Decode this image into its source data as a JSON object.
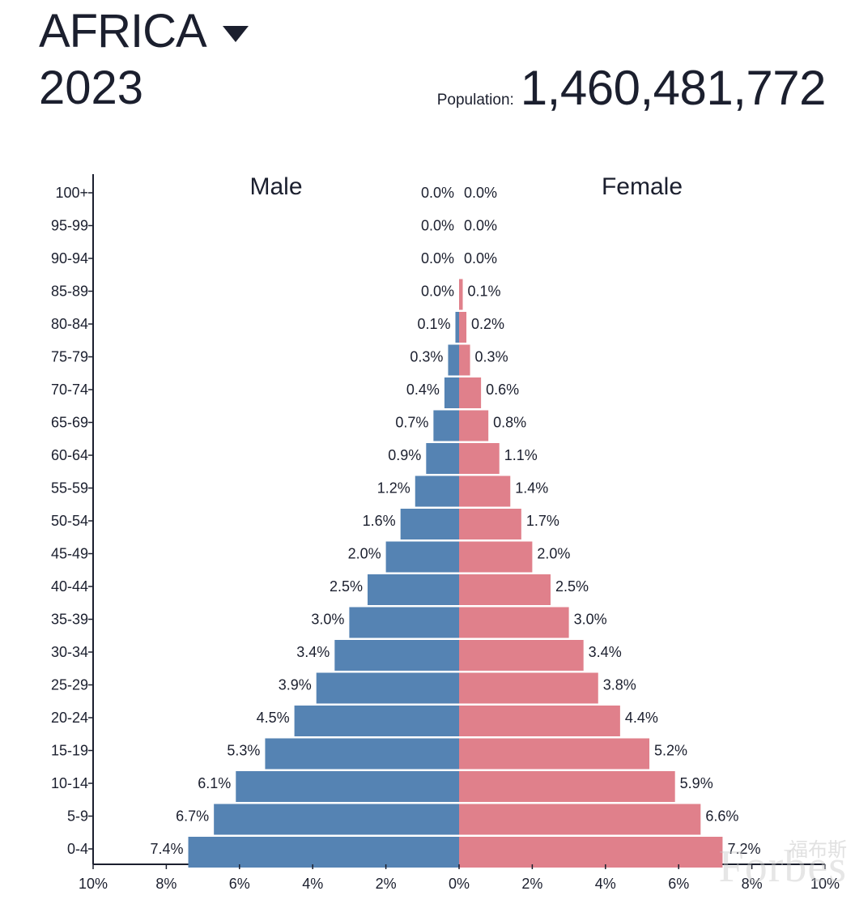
{
  "header": {
    "region": "AFRICA",
    "year": "2023",
    "population_label": "Population:",
    "population_value": "1,460,481,772",
    "dropdown_icon": "caret-down-icon"
  },
  "watermark": {
    "text": "Forbes",
    "cn": "福布斯"
  },
  "chart_data": {
    "type": "bar",
    "orientation": "horizontal-diverging",
    "categories": [
      "100+",
      "95-99",
      "90-94",
      "85-89",
      "80-84",
      "75-79",
      "70-74",
      "65-69",
      "60-64",
      "55-59",
      "50-54",
      "45-49",
      "40-44",
      "35-39",
      "30-34",
      "25-29",
      "20-24",
      "15-19",
      "10-14",
      "5-9",
      "0-4"
    ],
    "series": [
      {
        "name": "Male",
        "color": "#5583b3",
        "values": [
          0.0,
          0.0,
          0.0,
          0.0,
          0.1,
          0.3,
          0.4,
          0.7,
          0.9,
          1.2,
          1.6,
          2.0,
          2.5,
          3.0,
          3.4,
          3.9,
          4.5,
          5.3,
          6.1,
          6.7,
          7.4
        ],
        "labels": [
          "0.0%",
          "0.0%",
          "0.0%",
          "0.0%",
          "0.1%",
          "0.3%",
          "0.4%",
          "0.7%",
          "0.9%",
          "1.2%",
          "1.6%",
          "2.0%",
          "2.5%",
          "3.0%",
          "3.4%",
          "3.9%",
          "4.5%",
          "5.3%",
          "6.1%",
          "6.7%",
          "7.4%"
        ]
      },
      {
        "name": "Female",
        "color": "#e0808b",
        "values": [
          0.0,
          0.0,
          0.0,
          0.1,
          0.2,
          0.3,
          0.6,
          0.8,
          1.1,
          1.4,
          1.7,
          2.0,
          2.5,
          3.0,
          3.4,
          3.8,
          4.4,
          5.2,
          5.9,
          6.6,
          7.2
        ],
        "labels": [
          "0.0%",
          "0.0%",
          "0.0%",
          "0.1%",
          "0.2%",
          "0.3%",
          "0.6%",
          "0.8%",
          "1.1%",
          "1.4%",
          "1.7%",
          "2.0%",
          "2.5%",
          "3.0%",
          "3.4%",
          "3.8%",
          "4.4%",
          "5.2%",
          "5.9%",
          "6.6%",
          "7.2%"
        ]
      }
    ],
    "xlim": [
      -10,
      10
    ],
    "x_ticks": [
      "10%",
      "8%",
      "6%",
      "4%",
      "2%",
      "0%",
      "2%",
      "4%",
      "6%",
      "8%",
      "10%"
    ],
    "legend": [
      "Male",
      "Female"
    ],
    "xlabel": "",
    "ylabel": ""
  }
}
